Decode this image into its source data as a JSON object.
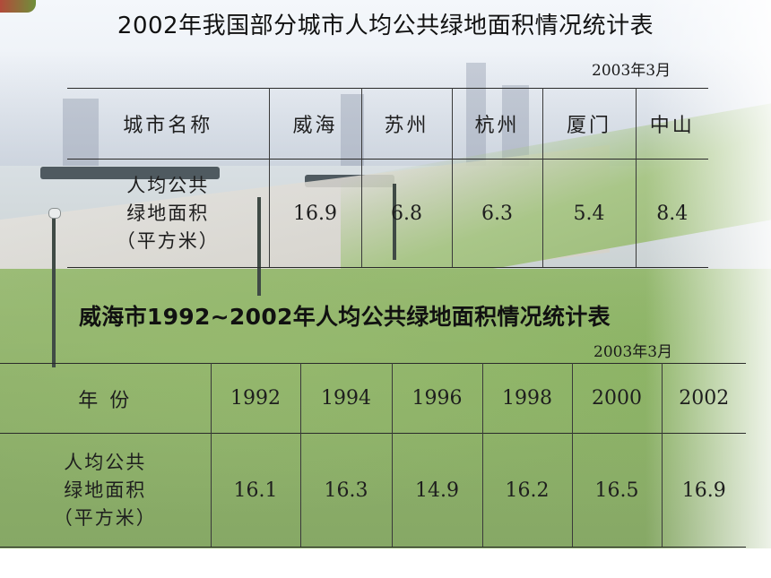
{
  "table1": {
    "title": "2002年我国部分城市人均公共绿地面积情况统计表",
    "date": "2003年3月",
    "header_label": "城市名称",
    "columns": [
      "威海",
      "苏州",
      "杭州",
      "厦门",
      "中山"
    ],
    "row_label": [
      "人均公共",
      "绿地面积",
      "（平方米）"
    ],
    "values": [
      "16.9",
      "6.8",
      "6.3",
      "5.4",
      "8.4"
    ]
  },
  "table2": {
    "title": "威海市1992~2002年人均公共绿地面积情况统计表",
    "date": "2003年3月",
    "header_label": "年 份",
    "columns": [
      "1992",
      "1994",
      "1996",
      "1998",
      "2000",
      "2002"
    ],
    "row_label": [
      "人均公共",
      "绿地面积",
      "（平方米）"
    ],
    "values": [
      "16.1",
      "16.3",
      "14.9",
      "16.2",
      "16.5",
      "16.9"
    ]
  }
}
